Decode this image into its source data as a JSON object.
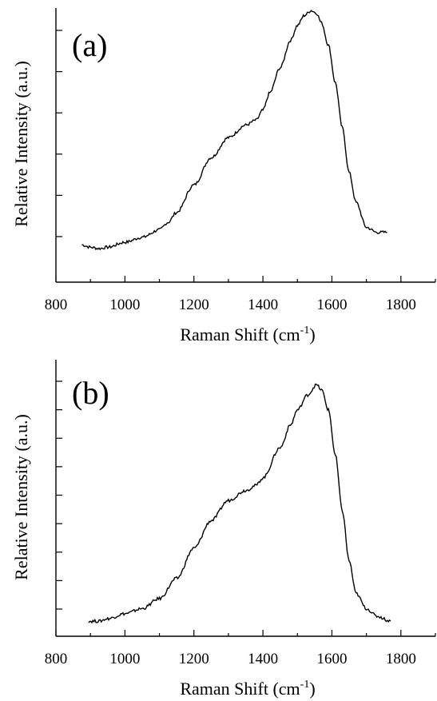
{
  "chart_data": [
    {
      "type": "line",
      "panel_label": "(a)",
      "xlabel": "Raman Shift (cm",
      "xlabel_sup": "-1",
      "xlabel_close": ")",
      "ylabel": "Relative Intensity (a.u.)",
      "xlim": [
        800,
        1900
      ],
      "ylim": [
        0,
        1.1
      ],
      "x_ticks": [
        800,
        1000,
        1200,
        1400,
        1600,
        1800
      ],
      "y_tick_count": 6,
      "grid": false,
      "series": [
        {
          "x": [
            875,
            900,
            925,
            950,
            1000,
            1050,
            1100,
            1125,
            1150,
            1200,
            1250,
            1300,
            1350,
            1380,
            1400,
            1420,
            1450,
            1480,
            1500,
            1520,
            1540,
            1555,
            1570,
            1590,
            1610,
            1630,
            1650,
            1670,
            1700,
            1730,
            1760
          ],
          "y": [
            0.15,
            0.14,
            0.135,
            0.14,
            0.16,
            0.18,
            0.21,
            0.24,
            0.28,
            0.39,
            0.5,
            0.58,
            0.63,
            0.65,
            0.69,
            0.76,
            0.86,
            0.97,
            1.03,
            1.07,
            1.09,
            1.08,
            1.04,
            0.95,
            0.8,
            0.62,
            0.44,
            0.32,
            0.22,
            0.2,
            0.2
          ]
        }
      ]
    },
    {
      "type": "line",
      "panel_label": "(b)",
      "xlabel": "Raman Shift (cm",
      "xlabel_sup": "-1",
      "xlabel_close": ")",
      "ylabel": "Relative Intensity (a.u.)",
      "xlim": [
        800,
        1900
      ],
      "ylim": [
        0,
        1.1
      ],
      "x_ticks": [
        800,
        1000,
        1200,
        1400,
        1600,
        1800
      ],
      "y_tick_count": 9,
      "grid": false,
      "series": [
        {
          "x": [
            895,
            925,
            950,
            1000,
            1050,
            1100,
            1150,
            1200,
            1250,
            1300,
            1350,
            1380,
            1400,
            1450,
            1480,
            1500,
            1530,
            1555,
            1570,
            1590,
            1610,
            1630,
            1650,
            1670,
            1700,
            1730,
            1770
          ],
          "y": [
            0.06,
            0.06,
            0.07,
            0.09,
            0.11,
            0.15,
            0.23,
            0.35,
            0.46,
            0.54,
            0.58,
            0.6,
            0.63,
            0.75,
            0.84,
            0.9,
            0.96,
            1.0,
            0.98,
            0.9,
            0.72,
            0.5,
            0.3,
            0.17,
            0.11,
            0.08,
            0.06
          ]
        }
      ]
    }
  ]
}
